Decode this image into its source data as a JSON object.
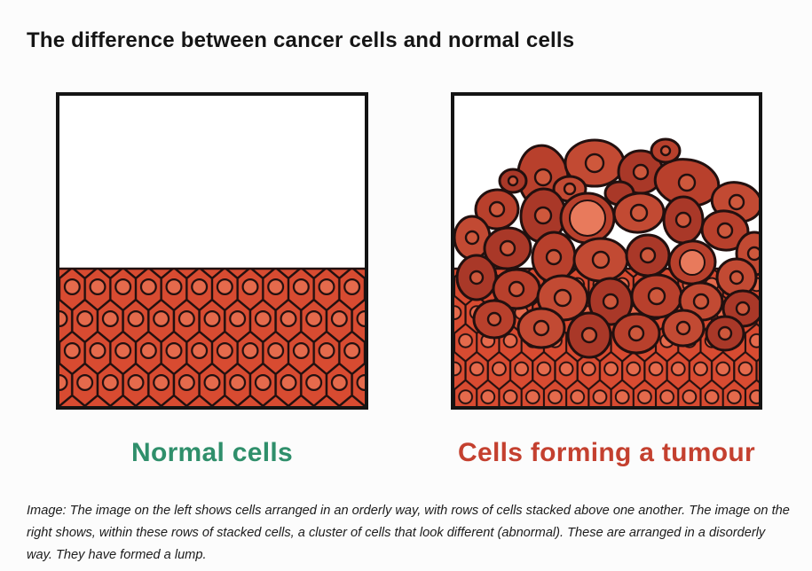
{
  "title": "The difference between cancer cells and normal cells",
  "figures": {
    "normal": {
      "label": "Normal cells",
      "label_color": "#2F8F6B"
    },
    "tumour": {
      "label": "Cells forming a tumour",
      "label_color": "#C4402F"
    }
  },
  "caption": "Image: The image on the left shows cells arranged in an orderly way, with rows of cells stacked above one another. The image on the right shows, within these rows of stacked cells, a cluster of cells that look different (abnormal). These are arranged in a disorderly way. They have formed a lump.",
  "illustration": {
    "colors": {
      "page_background": "#FCFCFC",
      "background": "#FFFFFF",
      "border": "#141414",
      "ink": "#22100F",
      "cell_fill": "#D84B31",
      "nucleus_fill": "#E56A4C",
      "tumor_fill": "#B8402C",
      "tumor_fill_alt": "#C24A33",
      "tumor_fill_dark": "#A93828",
      "tumor_nucleus_fill": "#CE583C",
      "tumor_nucleus_large_fill": "#E87A5C"
    },
    "tumor_cells": [
      [
        100,
        92,
        28,
        36,
        -8,
        9,
        0
      ],
      [
        158,
        76,
        33,
        26,
        0,
        10,
        0
      ],
      [
        210,
        86,
        25,
        24,
        0,
        8,
        0
      ],
      [
        262,
        98,
        36,
        26,
        10,
        9,
        0
      ],
      [
        318,
        120,
        28,
        22,
        12,
        8,
        0
      ],
      [
        66,
        96,
        15,
        13,
        0,
        5,
        0
      ],
      [
        238,
        62,
        16,
        13,
        0,
        5,
        0
      ],
      [
        130,
        105,
        18,
        14,
        0,
        6,
        0
      ],
      [
        186,
        110,
        16,
        13,
        0,
        5,
        2
      ],
      [
        48,
        128,
        24,
        22,
        -5,
        8,
        0
      ],
      [
        20,
        160,
        20,
        24,
        0,
        7,
        0
      ],
      [
        100,
        135,
        25,
        30,
        5,
        9,
        0
      ],
      [
        150,
        138,
        30,
        28,
        0,
        20,
        1
      ],
      [
        208,
        132,
        28,
        22,
        -6,
        9,
        0
      ],
      [
        258,
        140,
        22,
        26,
        0,
        8,
        0
      ],
      [
        305,
        152,
        26,
        22,
        8,
        8,
        0
      ],
      [
        338,
        178,
        20,
        24,
        0,
        7,
        0
      ],
      [
        60,
        172,
        26,
        23,
        -6,
        8,
        0
      ],
      [
        112,
        182,
        24,
        28,
        4,
        8,
        0
      ],
      [
        165,
        185,
        30,
        24,
        0,
        9,
        0
      ],
      [
        218,
        180,
        24,
        23,
        0,
        8,
        0
      ],
      [
        268,
        188,
        26,
        24,
        -8,
        14,
        1
      ],
      [
        318,
        205,
        22,
        21,
        0,
        7,
        0
      ],
      [
        25,
        205,
        22,
        25,
        0,
        7,
        0
      ],
      [
        70,
        218,
        26,
        22,
        0,
        8,
        0
      ],
      [
        122,
        228,
        28,
        25,
        5,
        9,
        0
      ],
      [
        176,
        232,
        24,
        26,
        -5,
        8,
        0
      ],
      [
        228,
        226,
        28,
        24,
        0,
        9,
        0
      ],
      [
        278,
        232,
        24,
        21,
        6,
        8,
        0
      ],
      [
        325,
        240,
        22,
        20,
        0,
        7,
        0
      ],
      [
        45,
        252,
        23,
        21,
        0,
        7,
        0
      ],
      [
        98,
        262,
        26,
        22,
        0,
        8,
        0
      ],
      [
        152,
        270,
        24,
        25,
        0,
        8,
        0
      ],
      [
        205,
        268,
        26,
        22,
        0,
        8,
        0
      ],
      [
        258,
        262,
        23,
        20,
        0,
        7,
        0
      ],
      [
        305,
        268,
        21,
        19,
        0,
        7,
        0
      ]
    ]
  }
}
